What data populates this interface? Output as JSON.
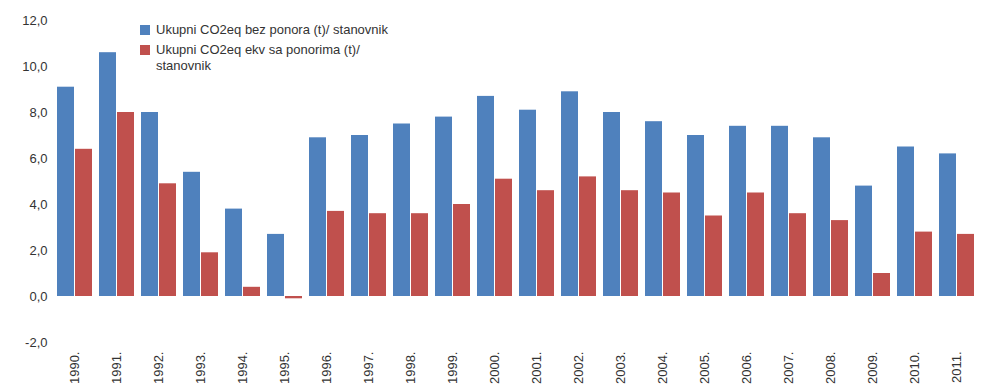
{
  "chart_data": {
    "type": "bar",
    "categories": [
      "1990.",
      "1991.",
      "1992.",
      "1993.",
      "1994.",
      "1995.",
      "1996.",
      "1997.",
      "1998.",
      "1999.",
      "2000.",
      "2001.",
      "2002.",
      "2003.",
      "2004.",
      "2005.",
      "2006.",
      "2007.",
      "2008.",
      "2009.",
      "2010.",
      "2011."
    ],
    "series": [
      {
        "name": "Ukupni CO2eq bez ponora (t)/ stanovnik",
        "color": "#4f81bd",
        "values": [
          9.1,
          10.6,
          8.0,
          5.4,
          3.8,
          2.7,
          6.9,
          7.0,
          7.5,
          7.8,
          8.7,
          8.1,
          8.9,
          8.0,
          7.6,
          7.0,
          7.4,
          7.4,
          6.9,
          4.8,
          6.5,
          6.2
        ]
      },
      {
        "name": "Ukupni CO2eq ekv sa ponorima (t)/ stanovnik",
        "color": "#c0504d",
        "values": [
          6.4,
          8.0,
          4.9,
          1.9,
          0.4,
          -0.1,
          3.7,
          3.6,
          3.6,
          4.0,
          5.1,
          4.6,
          5.2,
          4.6,
          4.5,
          3.5,
          4.5,
          3.6,
          3.3,
          1.0,
          2.8,
          2.7
        ]
      }
    ],
    "ylim": [
      -2,
      12
    ],
    "yticks": [
      {
        "value": -2,
        "label": "-2,0"
      },
      {
        "value": 0,
        "label": "0,0"
      },
      {
        "value": 2,
        "label": "2,0"
      },
      {
        "value": 4,
        "label": "4,0"
      },
      {
        "value": 6,
        "label": "6,0"
      },
      {
        "value": 8,
        "label": "8,0"
      },
      {
        "value": 10,
        "label": "10,0"
      },
      {
        "value": 12,
        "label": "12,0"
      }
    ],
    "grid": false,
    "legend": "top-left"
  }
}
